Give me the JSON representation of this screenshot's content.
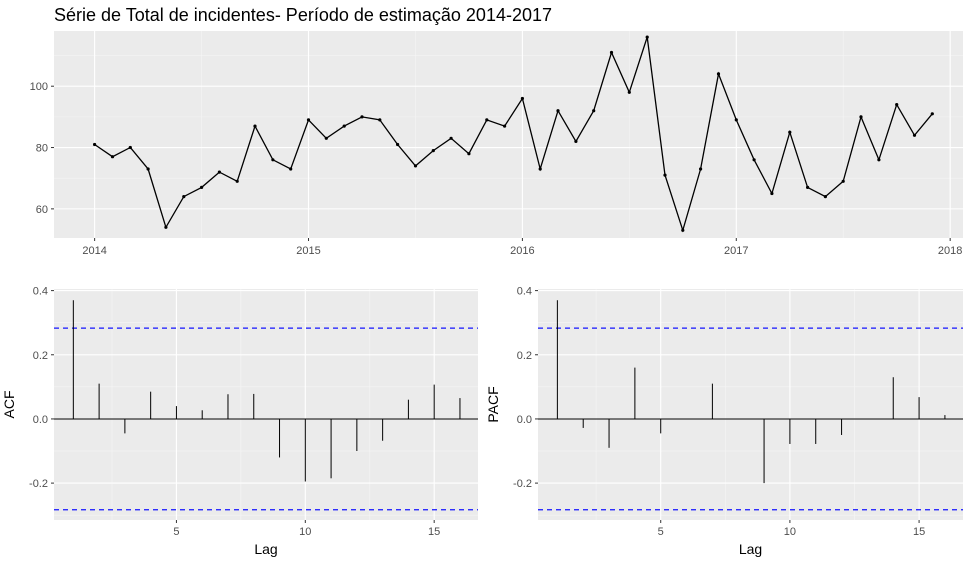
{
  "title": "Série de Total de incidentes- Período de estimação 2014-2017",
  "chart_data": [
    {
      "type": "line",
      "title": "Série de Total de incidentes- Período de estimação 2014-2017",
      "xlabel": "",
      "ylabel": "",
      "x_ticks": [
        "2014",
        "2015",
        "2016",
        "2017",
        "2018"
      ],
      "y_ticks": [
        "60",
        "80",
        "100"
      ],
      "xlim": [
        2013.81,
        2018.06
      ],
      "ylim": [
        50.5,
        118
      ],
      "x_start": 2014.0,
      "x_step": 0.083333,
      "values": [
        81,
        77,
        80,
        73,
        54,
        64,
        67,
        72,
        69,
        87,
        76,
        73,
        89,
        83,
        87,
        90,
        89,
        81,
        74,
        79,
        83,
        78,
        89,
        87,
        96,
        73,
        92,
        82,
        92,
        111,
        98,
        116,
        71,
        53,
        73,
        104,
        89,
        76,
        65,
        85,
        67,
        64,
        69,
        90,
        76,
        94,
        84,
        91
      ],
      "grid": true,
      "line_color": "#000000"
    },
    {
      "type": "bar",
      "xlabel": "Lag",
      "ylabel": "ACF",
      "x_ticks": [
        "5",
        "10",
        "15"
      ],
      "y_ticks": [
        "-0.2",
        "0.0",
        "0.2",
        "0.4"
      ],
      "xlim": [
        0.25,
        16.7
      ],
      "ylim": [
        -0.315,
        0.405
      ],
      "lags": [
        1,
        2,
        3,
        4,
        5,
        6,
        7,
        8,
        9,
        10,
        11,
        12,
        13,
        14,
        15,
        16
      ],
      "values": [
        0.37,
        0.11,
        -0.045,
        0.085,
        0.04,
        0.027,
        0.077,
        0.078,
        -0.12,
        -0.195,
        -0.185,
        -0.1,
        -0.068,
        0.06,
        0.107,
        0.065
      ],
      "conf_limit": 0.283,
      "conf_color": "#1414ff",
      "grid": true
    },
    {
      "type": "bar",
      "xlabel": "Lag",
      "ylabel": "PACF",
      "x_ticks": [
        "5",
        "10",
        "15"
      ],
      "y_ticks": [
        "-0.2",
        "0.0",
        "0.2",
        "0.4"
      ],
      "xlim": [
        0.25,
        16.7
      ],
      "ylim": [
        -0.315,
        0.405
      ],
      "lags": [
        1,
        2,
        3,
        4,
        5,
        6,
        7,
        8,
        9,
        10,
        11,
        12,
        13,
        14,
        15,
        16
      ],
      "values": [
        0.37,
        -0.028,
        -0.09,
        0.16,
        -0.045,
        0.0,
        0.11,
        0.0,
        -0.2,
        -0.078,
        -0.078,
        -0.05,
        0.0,
        0.13,
        0.068,
        0.012
      ],
      "conf_limit": 0.283,
      "conf_color": "#1414ff",
      "grid": true
    }
  ]
}
